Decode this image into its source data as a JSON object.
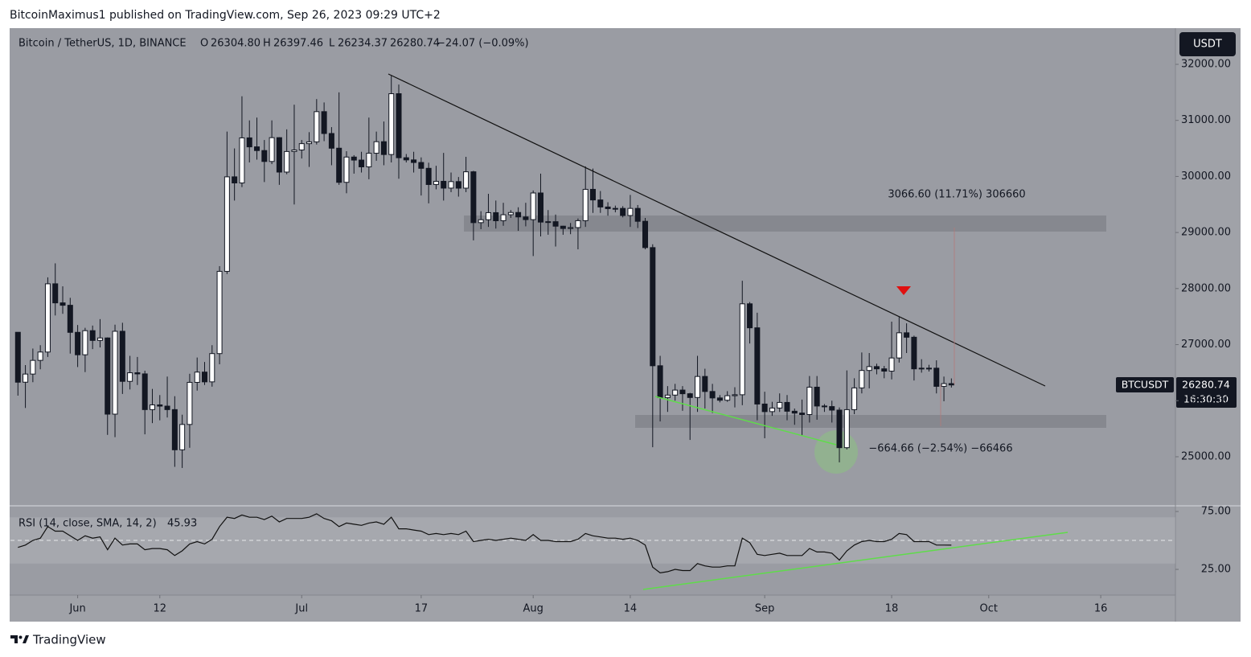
{
  "header": {
    "publisher": "BitcoinMaximus1 published on TradingView.com, Sep 26, 2023 09:29 UTC+2"
  },
  "footer": {
    "brand": "TradingView"
  },
  "chart_data": [
    {
      "type": "candlestick",
      "title": "Bitcoin / TetherUS, 1D, BINANCE",
      "legend": [
        "O",
        "26304.80",
        "H",
        "26397.46",
        "L",
        "26234.37",
        "26280.74",
        "−24.07 (−0.09%)"
      ],
      "currency": "USDT",
      "symbol": "BTCUSDT",
      "last_price": "26280.74",
      "countdown": "16:30:30",
      "annotations": [
        "3066.60 (11.71%) 306660",
        "−664.66 (−2.54%) −66466"
      ],
      "up_color": "#ffffff",
      "down_color": "#131722",
      "x": [
        "2023-05-24",
        "2023-05-25",
        "2023-05-26",
        "2023-05-27",
        "2023-05-28",
        "2023-05-29",
        "2023-05-30",
        "2023-05-31",
        "2023-06-01",
        "2023-06-02",
        "2023-06-03",
        "2023-06-04",
        "2023-06-05",
        "2023-06-06",
        "2023-06-07",
        "2023-06-08",
        "2023-06-09",
        "2023-06-10",
        "2023-06-11",
        "2023-06-12",
        "2023-06-13",
        "2023-06-14",
        "2023-06-15",
        "2023-06-16",
        "2023-06-17",
        "2023-06-18",
        "2023-06-19",
        "2023-06-20",
        "2023-06-21",
        "2023-06-22",
        "2023-06-23",
        "2023-06-24",
        "2023-06-25",
        "2023-06-26",
        "2023-06-27",
        "2023-06-28",
        "2023-06-29",
        "2023-06-30",
        "2023-07-01",
        "2023-07-02",
        "2023-07-03",
        "2023-07-04",
        "2023-07-05",
        "2023-07-06",
        "2023-07-07",
        "2023-07-08",
        "2023-07-09",
        "2023-07-10",
        "2023-07-11",
        "2023-07-12",
        "2023-07-13",
        "2023-07-14",
        "2023-07-15",
        "2023-07-16",
        "2023-07-17",
        "2023-07-18",
        "2023-07-19",
        "2023-07-20",
        "2023-07-21",
        "2023-07-22",
        "2023-07-23",
        "2023-07-24",
        "2023-07-25",
        "2023-07-26",
        "2023-07-27",
        "2023-07-28",
        "2023-07-29",
        "2023-07-30",
        "2023-07-31",
        "2023-08-01",
        "2023-08-02",
        "2023-08-03",
        "2023-08-04",
        "2023-08-05",
        "2023-08-06",
        "2023-08-07",
        "2023-08-08",
        "2023-08-09",
        "2023-08-10",
        "2023-08-11",
        "2023-08-12",
        "2023-08-13",
        "2023-08-14",
        "2023-08-15",
        "2023-08-16",
        "2023-08-17",
        "2023-08-18",
        "2023-08-19",
        "2023-08-20",
        "2023-08-21",
        "2023-08-22",
        "2023-08-23",
        "2023-08-24",
        "2023-08-25",
        "2023-08-26",
        "2023-08-27",
        "2023-08-28",
        "2023-08-29",
        "2023-08-30",
        "2023-08-31",
        "2023-09-01",
        "2023-09-02",
        "2023-09-03",
        "2023-09-04",
        "2023-09-05",
        "2023-09-06",
        "2023-09-07",
        "2023-09-08",
        "2023-09-09",
        "2023-09-10",
        "2023-09-11",
        "2023-09-12",
        "2023-09-13",
        "2023-09-14",
        "2023-09-15",
        "2023-09-16",
        "2023-09-17",
        "2023-09-18",
        "2023-09-19",
        "2023-09-20",
        "2023-09-21",
        "2023-09-22",
        "2023-09-23",
        "2023-09-24",
        "2023-09-25",
        "2023-09-26"
      ],
      "open": [
        27220,
        26330,
        26475,
        26719,
        26868,
        28085,
        27745,
        27702,
        27219,
        26819,
        27249,
        27075,
        27119,
        25760,
        27238,
        26345,
        26498,
        26478,
        25841,
        25925,
        25903,
        25841,
        25124,
        25576,
        26327,
        26510,
        26336,
        26840,
        28307,
        29993,
        29884,
        30688,
        30528,
        30462,
        30267,
        30692,
        30078,
        30445,
        30472,
        30585,
        30617,
        31156,
        30766,
        30504,
        29895,
        30346,
        30292,
        30171,
        30414,
        30620,
        30391,
        31476,
        30334,
        30295,
        30249,
        30145,
        29856,
        29913,
        29792,
        29908,
        29791,
        30083,
        29176,
        29228,
        29354,
        29210,
        29317,
        29357,
        29278,
        29230,
        29705,
        29186,
        29193,
        29113,
        29072,
        29088,
        29211,
        29770,
        29581,
        29455,
        29426,
        29430,
        29303,
        29430,
        29200,
        28731,
        26623,
        26054,
        26100,
        26189,
        26124,
        26057,
        26432,
        26164,
        26049,
        26008,
        26089,
        26106,
        27728,
        27300,
        25940,
        25805,
        25869,
        25969,
        25812,
        25779,
        25753,
        26241,
        25905,
        25895,
        25832,
        25162,
        25840,
        26228,
        26539,
        26608,
        26568,
        26527,
        26762,
        27211,
        27132,
        26568,
        26580,
        26580,
        26256,
        26304.8
      ],
      "high": [
        27220,
        26635,
        26930,
        26990,
        28200,
        28450,
        28040,
        27835,
        27350,
        27300,
        27340,
        27455,
        27130,
        27355,
        27390,
        26800,
        26780,
        26535,
        26210,
        26100,
        26430,
        26080,
        25750,
        26480,
        26770,
        26690,
        26990,
        28400,
        30800,
        30500,
        31430,
        31000,
        31050,
        30650,
        31000,
        30700,
        30840,
        31280,
        30650,
        30790,
        31380,
        31320,
        30880,
        31500,
        30450,
        30380,
        30440,
        31050,
        30800,
        30980,
        31800,
        31640,
        30400,
        30440,
        30340,
        30245,
        30190,
        30420,
        30070,
        29990,
        30350,
        30100,
        29380,
        29690,
        29570,
        29530,
        29400,
        29450,
        29530,
        29750,
        30050,
        29400,
        29320,
        29120,
        29170,
        29250,
        30180,
        30140,
        29740,
        29540,
        29480,
        29470,
        29670,
        29490,
        29260,
        28790,
        26800,
        26260,
        26300,
        26260,
        26140,
        26800,
        26570,
        26300,
        26100,
        26170,
        26240,
        28140,
        27760,
        27570,
        26160,
        25980,
        26130,
        26100,
        25860,
        26020,
        26440,
        26440,
        25940,
        26000,
        25880,
        26540,
        26400,
        26860,
        26850,
        26660,
        26620,
        27410,
        27490,
        27380,
        27160,
        26740,
        26640,
        26720,
        26430,
        26397.46
      ],
      "low": [
        26090,
        25870,
        26330,
        26560,
        26780,
        27520,
        27550,
        26840,
        26600,
        26510,
        26920,
        26950,
        25390,
        25350,
        26120,
        26200,
        26280,
        25400,
        25600,
        25650,
        25700,
        24820,
        24800,
        25160,
        26180,
        26280,
        26250,
        26650,
        28260,
        29570,
        29810,
        30250,
        30300,
        29900,
        30220,
        29850,
        30040,
        29500,
        30320,
        30170,
        30570,
        30630,
        30200,
        29850,
        29700,
        30050,
        30070,
        29950,
        30280,
        30200,
        30250,
        29960,
        30250,
        30070,
        29660,
        29520,
        29770,
        29570,
        29720,
        29640,
        29720,
        28860,
        29060,
        29100,
        29070,
        29120,
        29260,
        29030,
        29110,
        28580,
        28930,
        28960,
        28750,
        28960,
        28970,
        28700,
        29100,
        29350,
        29350,
        29300,
        29360,
        29270,
        29100,
        29080,
        28700,
        25170,
        25630,
        25800,
        26000,
        25820,
        25300,
        25800,
        25860,
        25780,
        25970,
        25980,
        25880,
        25920,
        27020,
        25650,
        25330,
        25730,
        25800,
        25650,
        25570,
        25380,
        25610,
        25660,
        25800,
        25610,
        24900,
        25130,
        25760,
        26130,
        26220,
        26470,
        26400,
        26380,
        26680,
        26850,
        26360,
        26500,
        26520,
        26130,
        25990,
        26234.37
      ],
      "close": [
        26330,
        26475,
        26719,
        26868,
        28085,
        27745,
        27702,
        27219,
        26819,
        27249,
        27075,
        27119,
        25760,
        27238,
        26345,
        26498,
        26478,
        25841,
        25925,
        25903,
        25841,
        25124,
        25576,
        26327,
        26510,
        26336,
        26840,
        28307,
        29993,
        29884,
        30688,
        30528,
        30462,
        30267,
        30692,
        30078,
        30445,
        30472,
        30585,
        30617,
        31156,
        30766,
        30504,
        29895,
        30346,
        30292,
        30171,
        30414,
        30620,
        30391,
        31476,
        30334,
        30295,
        30249,
        30145,
        29856,
        29913,
        29792,
        29908,
        29791,
        30083,
        29176,
        29228,
        29354,
        29210,
        29317,
        29357,
        29278,
        29230,
        29705,
        29186,
        29193,
        29113,
        29072,
        29088,
        29211,
        29770,
        29581,
        29455,
        29426,
        29430,
        29303,
        29430,
        29200,
        28731,
        26623,
        26054,
        26100,
        26189,
        26124,
        26057,
        26432,
        26164,
        26049,
        26008,
        26089,
        26106,
        27728,
        27300,
        25940,
        25805,
        25869,
        25969,
        25812,
        25779,
        25753,
        26241,
        25905,
        25895,
        25832,
        25162,
        25840,
        26228,
        26539,
        26608,
        26568,
        26527,
        26762,
        27211,
        27132,
        26568,
        26580,
        26580,
        26256,
        26304.8,
        26280.74
      ],
      "xlim": [
        "2023-05-23",
        "2023-10-26"
      ],
      "ylim": [
        24139,
        32631
      ],
      "yticks": [
        {
          "value": 25000,
          "label": "25000.00"
        },
        {
          "value": 26000,
          "label": "26000.00"
        },
        {
          "value": 27000,
          "label": "27000.00"
        },
        {
          "value": 28000,
          "label": "28000.00"
        },
        {
          "value": 29000,
          "label": "29000.00"
        },
        {
          "value": 30000,
          "label": "30000.00"
        },
        {
          "value": 31000,
          "label": "31000.00"
        },
        {
          "value": 32000,
          "label": "32000.00"
        }
      ]
    },
    {
      "type": "line",
      "title": "RSI (14, close, SMA, 14, 2)",
      "last_value": "45.93",
      "color": "#111111",
      "bands": [
        30,
        70
      ],
      "midline": 50,
      "x": [
        "2023-05-24",
        "2023-05-25",
        "2023-05-26",
        "2023-05-27",
        "2023-05-28",
        "2023-05-29",
        "2023-05-30",
        "2023-05-31",
        "2023-06-01",
        "2023-06-02",
        "2023-06-03",
        "2023-06-04",
        "2023-06-05",
        "2023-06-06",
        "2023-06-07",
        "2023-06-08",
        "2023-06-09",
        "2023-06-10",
        "2023-06-11",
        "2023-06-12",
        "2023-06-13",
        "2023-06-14",
        "2023-06-15",
        "2023-06-16",
        "2023-06-17",
        "2023-06-18",
        "2023-06-19",
        "2023-06-20",
        "2023-06-21",
        "2023-06-22",
        "2023-06-23",
        "2023-06-24",
        "2023-06-25",
        "2023-06-26",
        "2023-06-27",
        "2023-06-28",
        "2023-06-29",
        "2023-06-30",
        "2023-07-01",
        "2023-07-02",
        "2023-07-03",
        "2023-07-04",
        "2023-07-05",
        "2023-07-06",
        "2023-07-07",
        "2023-07-08",
        "2023-07-09",
        "2023-07-10",
        "2023-07-11",
        "2023-07-12",
        "2023-07-13",
        "2023-07-14",
        "2023-07-15",
        "2023-07-16",
        "2023-07-17",
        "2023-07-18",
        "2023-07-19",
        "2023-07-20",
        "2023-07-21",
        "2023-07-22",
        "2023-07-23",
        "2023-07-24",
        "2023-07-25",
        "2023-07-26",
        "2023-07-27",
        "2023-07-28",
        "2023-07-29",
        "2023-07-30",
        "2023-07-31",
        "2023-08-01",
        "2023-08-02",
        "2023-08-03",
        "2023-08-04",
        "2023-08-05",
        "2023-08-06",
        "2023-08-07",
        "2023-08-08",
        "2023-08-09",
        "2023-08-10",
        "2023-08-11",
        "2023-08-12",
        "2023-08-13",
        "2023-08-14",
        "2023-08-15",
        "2023-08-16",
        "2023-08-17",
        "2023-08-18",
        "2023-08-19",
        "2023-08-20",
        "2023-08-21",
        "2023-08-22",
        "2023-08-23",
        "2023-08-24",
        "2023-08-25",
        "2023-08-26",
        "2023-08-27",
        "2023-08-28",
        "2023-08-29",
        "2023-08-30",
        "2023-08-31",
        "2023-09-01",
        "2023-09-02",
        "2023-09-03",
        "2023-09-04",
        "2023-09-05",
        "2023-09-06",
        "2023-09-07",
        "2023-09-08",
        "2023-09-09",
        "2023-09-10",
        "2023-09-11",
        "2023-09-12",
        "2023-09-13",
        "2023-09-14",
        "2023-09-15",
        "2023-09-16",
        "2023-09-17",
        "2023-09-18",
        "2023-09-19",
        "2023-09-20",
        "2023-09-21",
        "2023-09-22",
        "2023-09-23",
        "2023-09-24",
        "2023-09-25",
        "2023-09-26"
      ],
      "values": [
        44,
        46,
        50,
        52,
        62,
        58,
        58,
        54,
        50,
        54,
        52,
        53,
        42,
        52,
        46,
        47,
        47,
        42,
        43,
        43,
        42,
        37,
        41,
        47,
        49,
        47,
        51,
        62,
        70,
        69,
        72,
        70,
        70,
        68,
        71,
        66,
        69,
        69,
        69,
        70,
        73,
        69,
        67,
        62,
        65,
        64,
        63,
        65,
        66,
        64,
        70,
        60,
        60,
        59,
        58,
        55,
        56,
        55,
        56,
        55,
        58,
        49,
        50,
        51,
        50,
        51,
        52,
        51,
        50,
        55,
        50,
        50,
        49,
        49,
        49,
        51,
        56,
        54,
        53,
        52,
        52,
        51,
        52,
        50,
        46,
        27,
        22,
        23,
        25,
        24,
        24,
        30,
        28,
        27,
        27,
        28,
        28,
        52,
        48,
        38,
        37,
        38,
        39,
        37,
        37,
        37,
        43,
        40,
        40,
        39,
        33,
        41,
        46,
        49,
        50,
        49,
        49,
        51,
        56,
        55,
        49,
        49,
        49,
        46,
        46,
        45.93
      ],
      "xlim": [
        "2023-05-23",
        "2023-10-26"
      ],
      "xticks": [
        {
          "value": "2023-06-01",
          "label": "Jun"
        },
        {
          "value": "2023-06-12",
          "label": "12"
        },
        {
          "value": "2023-07-01",
          "label": "Jul"
        },
        {
          "value": "2023-07-17",
          "label": "17"
        },
        {
          "value": "2023-08-01",
          "label": "Aug"
        },
        {
          "value": "2023-08-14",
          "label": "14"
        },
        {
          "value": "2023-09-01",
          "label": "Sep"
        },
        {
          "value": "2023-09-18",
          "label": "18"
        },
        {
          "value": "2023-10-01",
          "label": "Oct"
        },
        {
          "value": "2023-10-16",
          "label": "16"
        }
      ],
      "ylim": [
        4.2,
        79.2
      ],
      "yticks": [
        {
          "value": 75,
          "label": "75.00"
        },
        {
          "value": 25,
          "label": "25.00"
        }
      ]
    }
  ]
}
